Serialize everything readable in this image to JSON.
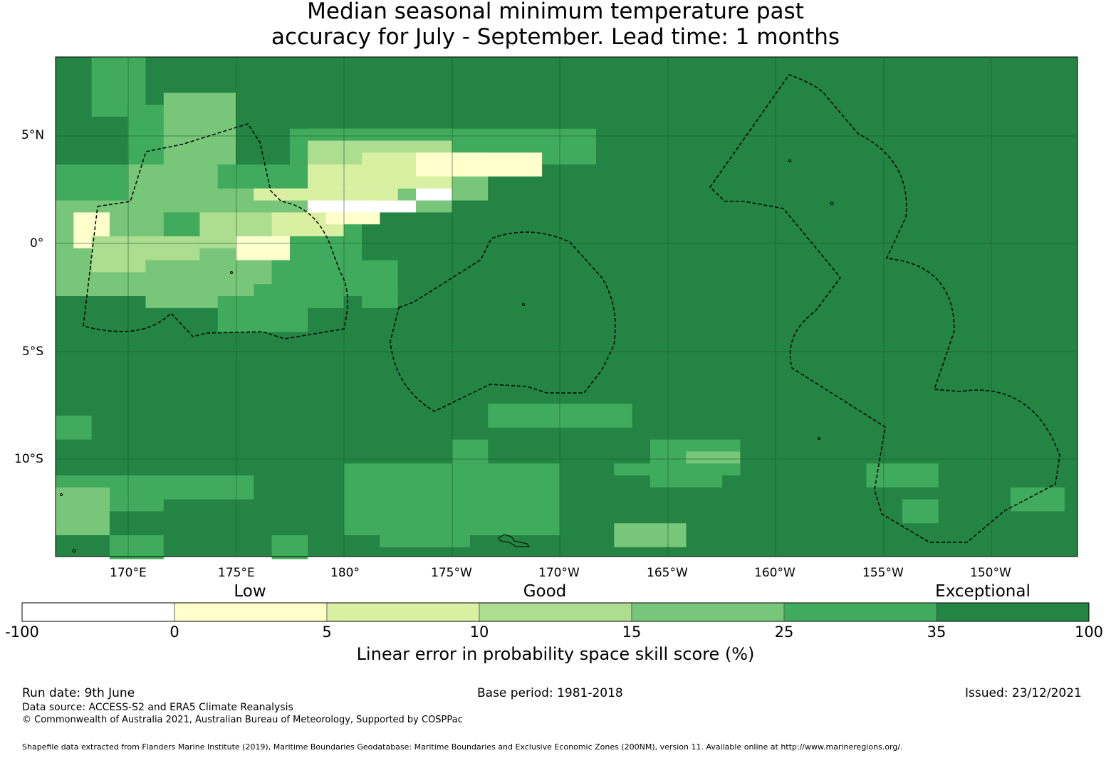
{
  "title_line1": "Median seasonal minimum temperature past",
  "title_line2": "accuracy for July - September. Lead time: 1 months",
  "map": {
    "lat_labels": [
      "5°N",
      "0°",
      "5°S",
      "10°S"
    ],
    "lon_labels": [
      "170°E",
      "175°E",
      "180°",
      "175°W",
      "170°W",
      "165°W",
      "160°W",
      "155°W",
      "150°W"
    ],
    "background_color": "#238443"
  },
  "colorbar": {
    "categories": [
      "Low",
      "Good",
      "Exceptional"
    ],
    "ticks": [
      "-100",
      "0",
      "5",
      "10",
      "15",
      "25",
      "35",
      "100"
    ],
    "colors": [
      "#ffffff",
      "#ffffcc",
      "#d9f0a3",
      "#addd8e",
      "#78c679",
      "#41ab5d",
      "#238443"
    ],
    "label": "Linear error in probability space skill score (%)"
  },
  "footer": {
    "run_date": "Run date: 9th June",
    "base_period": "Base period: 1981-2018",
    "issued": "Issued: 23/12/2021",
    "data_source": "Data source: ACCESS-S2 and ERA5 Climate Reanalysis",
    "copyright": "© Commonwealth of Australia 2021, Australian Bureau of Meteorology, Supported by COSPPac",
    "shapefile": "Shapefile data extracted from Flanders Marine Institute (2019), Maritime Boundaries Geodatabase: Maritime Boundaries and Exclusive Economic Zones (200NM), version 11. Available online at http://www.marineregions.org/."
  }
}
